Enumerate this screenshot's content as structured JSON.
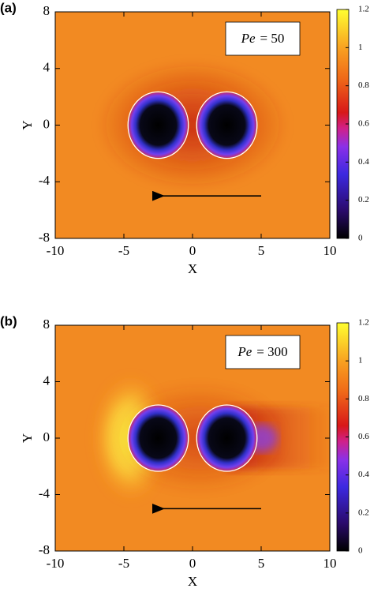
{
  "chart_data": [
    {
      "type": "heatmap",
      "panel_label": "(a)",
      "x_label": "X",
      "y_label": "Y",
      "xlim": [
        -10,
        10
      ],
      "xticks": [
        -10,
        -5,
        0,
        5,
        10
      ],
      "ylim": [
        -8,
        8
      ],
      "yticks": [
        -8,
        -4,
        0,
        4,
        8
      ],
      "annotation_symbol": "Pe",
      "annotation_value": "= 50",
      "colorbar_lim": [
        0,
        1.2
      ],
      "colorbar_ticks": [
        0,
        0.2,
        0.4,
        0.6,
        0.8,
        1,
        1.2
      ]
    },
    {
      "type": "heatmap",
      "panel_label": "(b)",
      "x_label": "X",
      "y_label": "Y",
      "xlim": [
        -10,
        10
      ],
      "xticks": [
        -10,
        -5,
        0,
        5,
        10
      ],
      "ylim": [
        -8,
        8
      ],
      "yticks": [
        -8,
        -4,
        0,
        4,
        8
      ],
      "annotation_symbol": "Pe",
      "annotation_value": "= 300",
      "colorbar_lim": [
        0,
        1.2
      ],
      "colorbar_ticks": [
        0,
        0.2,
        0.4,
        0.6,
        0.8,
        1,
        1.2
      ]
    }
  ]
}
